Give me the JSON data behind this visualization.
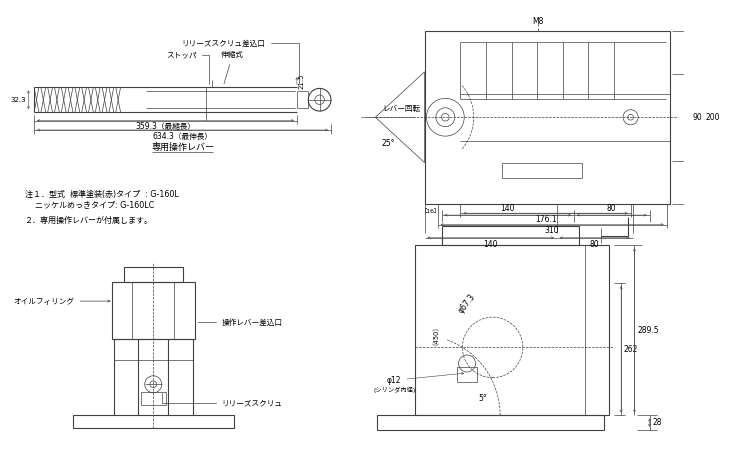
{
  "bg_color": "#ffffff",
  "line_color": "#404040",
  "text_color": "#000000",
  "notes_line1": "注１．型式  標準塗装(赤)タイプ  : G-160L",
  "notes_line2": "    ニッケルめっきタイプ: G-160LC",
  "notes_line3": "２．専用操作レバーが付属します。",
  "lever_labels": {
    "release_inlet": "リリーズスクリュ差込口",
    "stopper": "ストッパ",
    "telescopic": "伸縮式",
    "dim_215": "21.5",
    "dim_323": "32.3",
    "dim_3593": "359.3（最縮長）",
    "dim_6343": "634.3（最伸長）",
    "lever_name": "専用操作レバー"
  },
  "top_right_labels": {
    "m8": "M8",
    "lever_rotate": "レバー回転",
    "dim_25": "25°",
    "dim_90": "90",
    "dim_200": "200",
    "dim_1761": "176.1",
    "dim_16": "［16］",
    "dim_310": "310",
    "dim_140": "140",
    "dim_80": "80"
  },
  "bottom_left_labels": {
    "oil_filling": "オイルフィリング",
    "lever_inlet": "操作レバー差込口",
    "release_screw": "リリーズスクリュ"
  },
  "bottom_right_labels": {
    "dim_67_3": "φ67.3",
    "dim_262": "262",
    "dim_1450": "〔450〕",
    "dim_phi12": "φ12",
    "cylinder": "(シリンダ内径)",
    "dim_5deg": "5°",
    "dim_2895": "289.5",
    "dim_28": "28",
    "dim_140": "140",
    "dim_80": "80"
  }
}
